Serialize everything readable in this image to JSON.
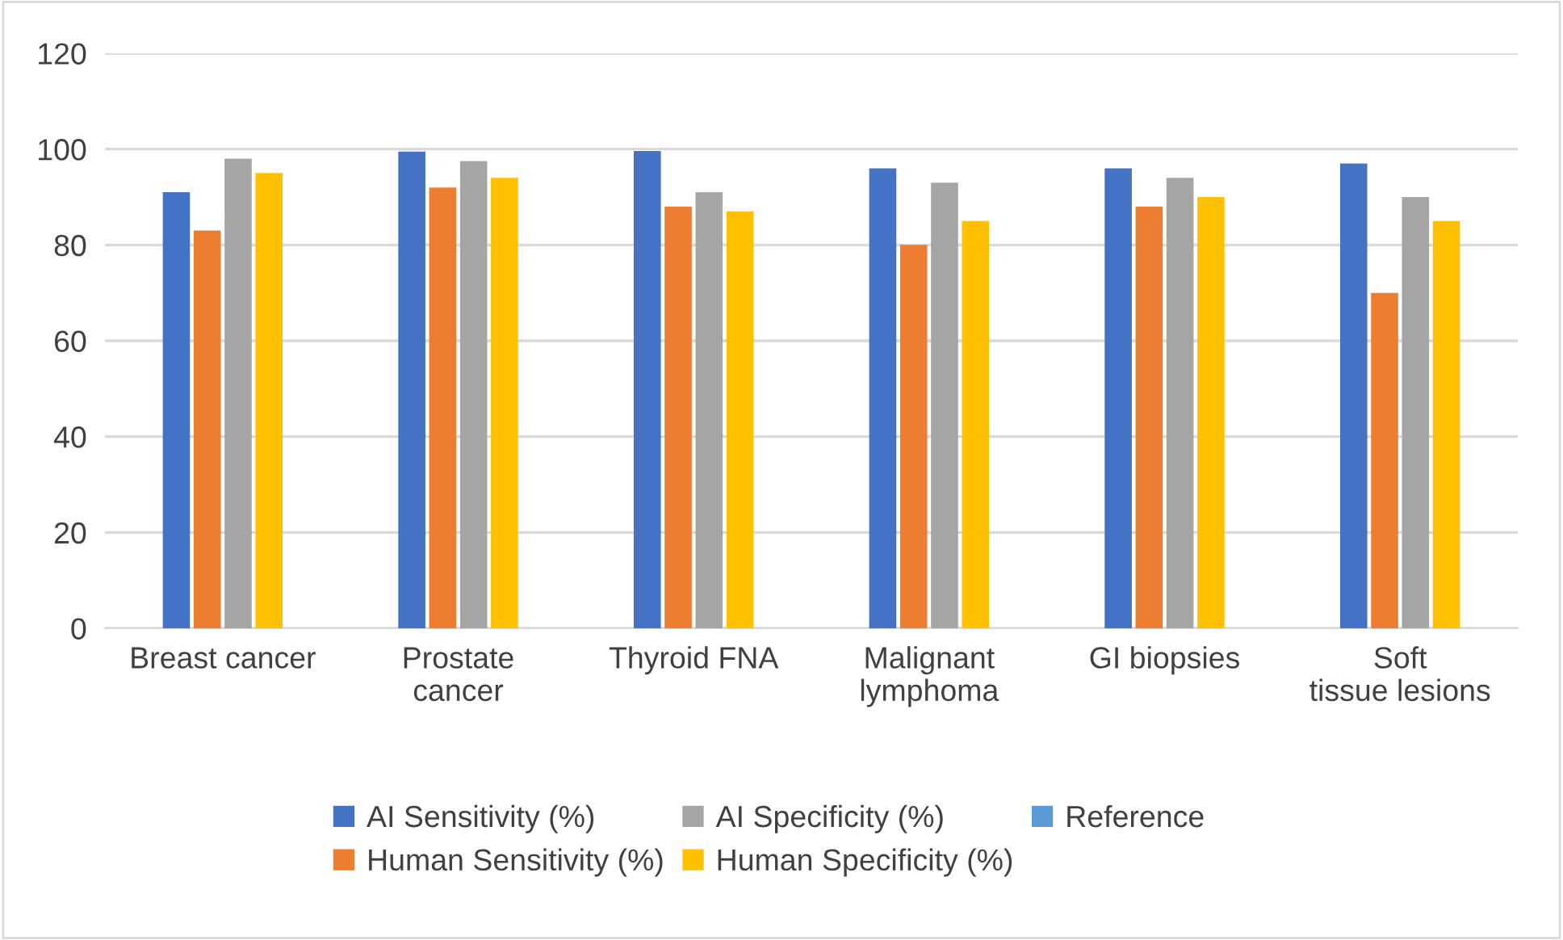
{
  "chart_data": {
    "type": "bar",
    "categories": [
      "Breast cancer",
      "Prostate cancer",
      "Thyroid FNA",
      "Malignant lymphoma",
      "GI biopsies",
      "Soft tissue lesions"
    ],
    "series": [
      {
        "name": "AI Sensitivity (%)",
        "color": "#4472c4",
        "values": [
          91,
          99.5,
          99.6,
          96,
          96,
          97
        ]
      },
      {
        "name": "Human Sensitivity (%)",
        "color": "#ed7d31",
        "values": [
          83,
          92,
          88,
          80,
          88,
          70
        ]
      },
      {
        "name": "AI Specificity (%)",
        "color": "#a5a5a5",
        "values": [
          98,
          97.5,
          91,
          93,
          94,
          90
        ]
      },
      {
        "name": "Human Specificity (%)",
        "color": "#ffc000",
        "values": [
          95,
          94,
          87,
          85,
          90,
          85
        ]
      },
      {
        "name": "Reference",
        "color": "#5b9bd5",
        "values": [
          null,
          null,
          null,
          null,
          null,
          null
        ]
      }
    ],
    "ylim": [
      0,
      120
    ],
    "yticks": [
      0,
      20,
      40,
      60,
      80,
      100,
      120
    ],
    "grid": "y",
    "legend": "bottom"
  }
}
